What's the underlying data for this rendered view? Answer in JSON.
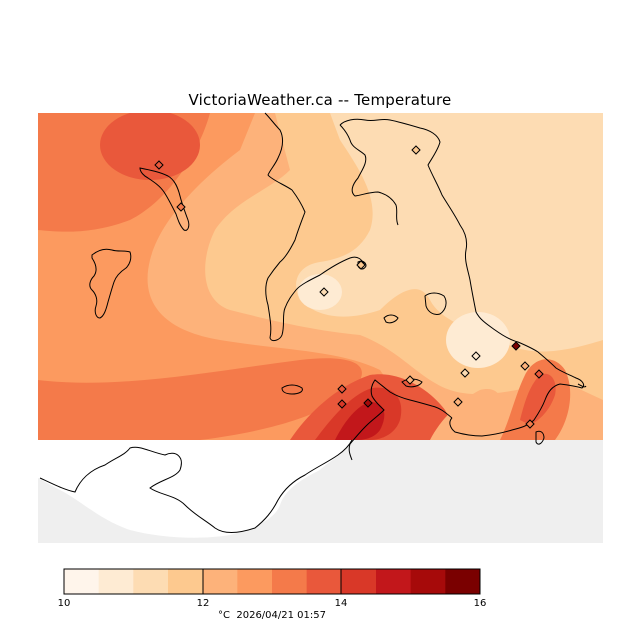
{
  "title": "VictoriaWeather.ca -- Temperature",
  "colorbar": {
    "colors": [
      "#fff5eb",
      "#feebd3",
      "#fddcb3",
      "#fdc98f",
      "#fdb27a",
      "#fc9a5f",
      "#f47a4a",
      "#e9583b",
      "#d93828",
      "#c2171b",
      "#a60a0a",
      "#7a0000"
    ],
    "ticks": [
      "10",
      "12",
      "14",
      "16"
    ],
    "unit": "°C",
    "timestamp": "2026/04/21 01:57"
  },
  "map": {
    "ocean_color": "#efefef",
    "land_color": "#ffffff",
    "stations": 16
  }
}
